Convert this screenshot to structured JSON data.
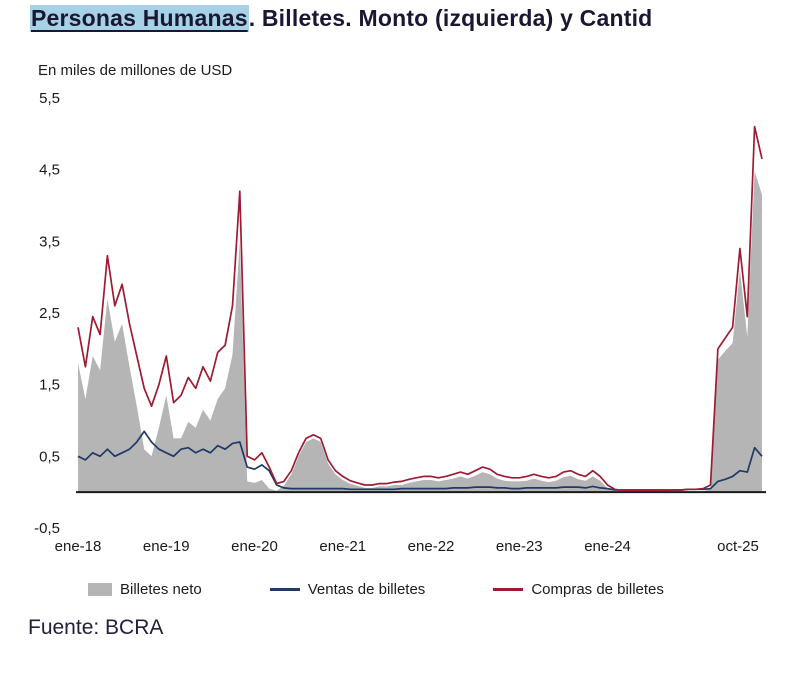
{
  "title": {
    "highlight": "Personas Humanas",
    "rest": ". Billetes. Monto (izquierda) y Cantid",
    "highlight_color": "#a7d1e7",
    "text_color": "#1a1733"
  },
  "source": "Fuente: BCRA",
  "chart_data": {
    "type": "area",
    "title": "Personas Humanas. Billetes. Monto (izquierda) y Cantid",
    "unit_label": "En miles de millones de USD",
    "x_start": "ene-18",
    "x_end": "oct-25",
    "frequency": "monthly",
    "ylim": [
      -0.5,
      5.5
    ],
    "grid": false,
    "legend_position": "bottom",
    "axis_color": "#1a1a1a",
    "text_color": "#1a1a1a",
    "y_ticks": [
      {
        "label": "5,5",
        "v": 5.5
      },
      {
        "label": "4,5",
        "v": 4.5
      },
      {
        "label": "3,5",
        "v": 3.5
      },
      {
        "label": "2,5",
        "v": 2.5
      },
      {
        "label": "1,5",
        "v": 1.5
      },
      {
        "label": "0,5",
        "v": 0.5
      },
      {
        "label": "-0,5",
        "v": -0.5
      }
    ],
    "x_ticks": [
      {
        "label": "ene-18",
        "i": 0
      },
      {
        "label": "ene-19",
        "i": 12
      },
      {
        "label": "ene-20",
        "i": 24
      },
      {
        "label": "ene-21",
        "i": 36
      },
      {
        "label": "ene-22",
        "i": 48
      },
      {
        "label": "ene-23",
        "i": 60
      },
      {
        "label": "ene-24",
        "i": 72
      },
      {
        "label": "oct-25",
        "i": 93
      }
    ],
    "series": [
      {
        "name": "Billetes neto",
        "type": "area",
        "color": "#b5b5b5",
        "values": [
          1.8,
          1.3,
          1.9,
          1.7,
          2.7,
          2.1,
          2.35,
          1.75,
          1.2,
          0.6,
          0.5,
          0.9,
          1.35,
          0.75,
          0.75,
          0.98,
          0.9,
          1.15,
          1.0,
          1.3,
          1.45,
          1.92,
          3.5,
          0.15,
          0.13,
          0.17,
          0.05,
          0.02,
          0.09,
          0.25,
          0.5,
          0.7,
          0.75,
          0.7,
          0.4,
          0.25,
          0.17,
          0.12,
          0.09,
          0.06,
          0.06,
          0.08,
          0.08,
          0.1,
          0.1,
          0.13,
          0.15,
          0.17,
          0.17,
          0.15,
          0.17,
          0.19,
          0.22,
          0.19,
          0.23,
          0.28,
          0.25,
          0.19,
          0.16,
          0.15,
          0.15,
          0.16,
          0.19,
          0.16,
          0.14,
          0.16,
          0.21,
          0.23,
          0.18,
          0.16,
          0.22,
          0.16,
          0.05,
          0.01,
          -0.01,
          -0.01,
          -0.01,
          -0.01,
          -0.01,
          -0.01,
          -0.01,
          0.0,
          0.0,
          0.0,
          0.0,
          0.01,
          0.05,
          1.85,
          1.97,
          2.08,
          3.1,
          2.17,
          4.48,
          4.15
        ]
      },
      {
        "name": "Ventas de billetes",
        "type": "line",
        "color": "#1f3a68",
        "values": [
          0.5,
          0.45,
          0.55,
          0.5,
          0.6,
          0.5,
          0.55,
          0.6,
          0.7,
          0.85,
          0.7,
          0.6,
          0.55,
          0.5,
          0.6,
          0.62,
          0.55,
          0.6,
          0.55,
          0.65,
          0.6,
          0.68,
          0.7,
          0.35,
          0.32,
          0.38,
          0.3,
          0.1,
          0.06,
          0.05,
          0.05,
          0.05,
          0.05,
          0.05,
          0.05,
          0.05,
          0.05,
          0.04,
          0.04,
          0.04,
          0.04,
          0.04,
          0.04,
          0.04,
          0.05,
          0.05,
          0.05,
          0.05,
          0.05,
          0.05,
          0.05,
          0.06,
          0.06,
          0.06,
          0.07,
          0.07,
          0.07,
          0.06,
          0.06,
          0.05,
          0.05,
          0.06,
          0.06,
          0.06,
          0.06,
          0.06,
          0.07,
          0.07,
          0.07,
          0.06,
          0.08,
          0.06,
          0.05,
          0.03,
          0.03,
          0.03,
          0.03,
          0.03,
          0.03,
          0.03,
          0.03,
          0.03,
          0.03,
          0.04,
          0.04,
          0.04,
          0.05,
          0.15,
          0.18,
          0.22,
          0.3,
          0.28,
          0.62,
          0.5
        ]
      },
      {
        "name": "Compras de billetes",
        "type": "line",
        "color": "#9e1b32",
        "values": [
          2.3,
          1.75,
          2.45,
          2.2,
          3.3,
          2.6,
          2.9,
          2.35,
          1.9,
          1.45,
          1.2,
          1.5,
          1.9,
          1.25,
          1.35,
          1.6,
          1.45,
          1.75,
          1.55,
          1.95,
          2.05,
          2.6,
          4.2,
          0.5,
          0.45,
          0.55,
          0.35,
          0.12,
          0.15,
          0.3,
          0.55,
          0.75,
          0.8,
          0.75,
          0.45,
          0.3,
          0.22,
          0.16,
          0.13,
          0.1,
          0.1,
          0.12,
          0.12,
          0.14,
          0.15,
          0.18,
          0.2,
          0.22,
          0.22,
          0.2,
          0.22,
          0.25,
          0.28,
          0.25,
          0.3,
          0.35,
          0.32,
          0.25,
          0.22,
          0.2,
          0.2,
          0.22,
          0.25,
          0.22,
          0.2,
          0.22,
          0.28,
          0.3,
          0.25,
          0.22,
          0.3,
          0.22,
          0.1,
          0.04,
          0.02,
          0.02,
          0.02,
          0.02,
          0.02,
          0.02,
          0.02,
          0.03,
          0.03,
          0.04,
          0.04,
          0.05,
          0.1,
          2.0,
          2.15,
          2.3,
          3.4,
          2.45,
          5.1,
          4.65
        ]
      }
    ]
  }
}
